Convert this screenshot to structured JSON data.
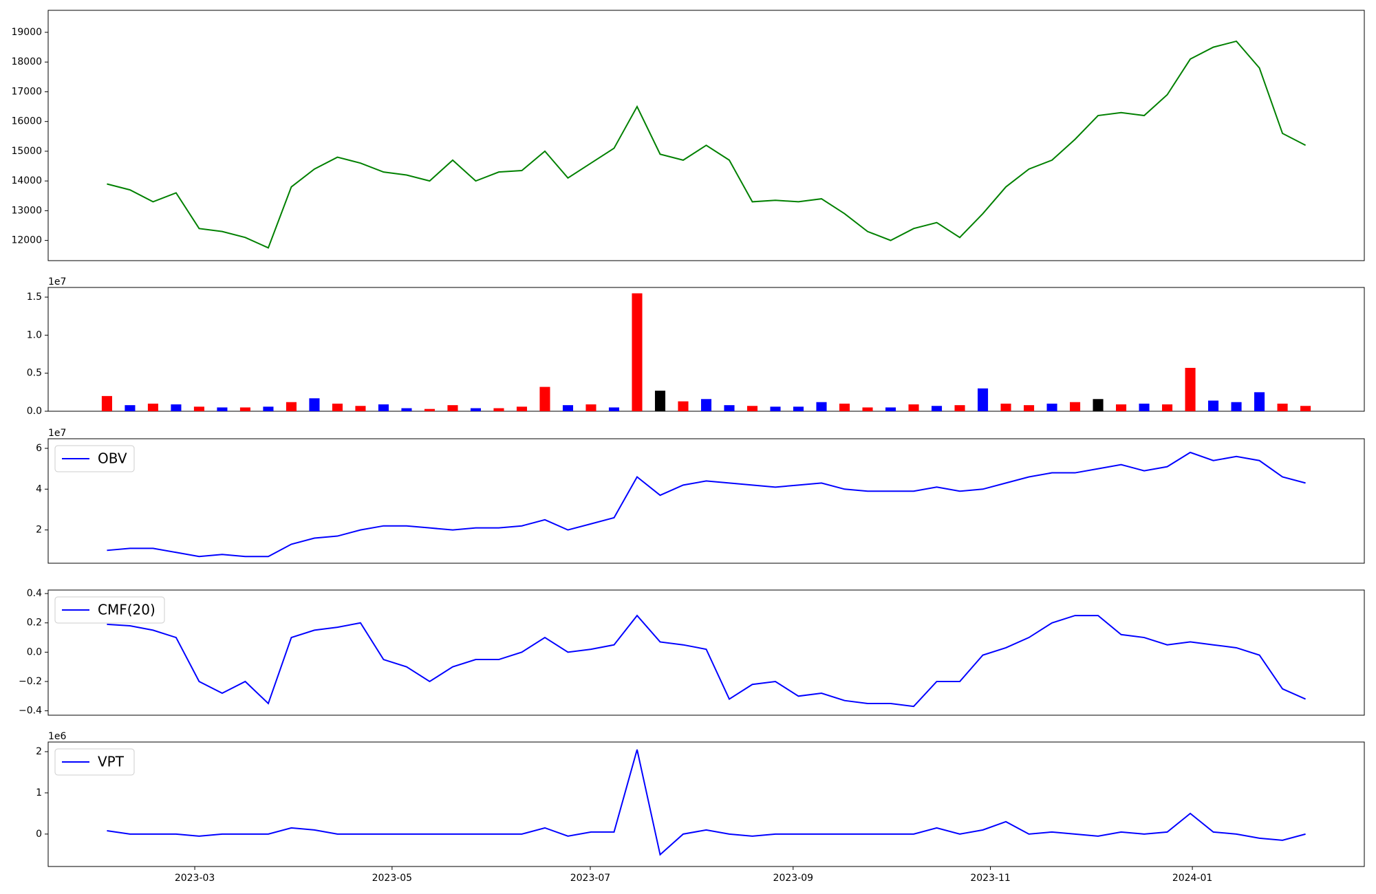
{
  "chart_data": [
    {
      "type": "line",
      "series": [
        {
          "color": "#008000",
          "values": [
            13900,
            13700,
            13300,
            13600,
            12400,
            12300,
            12100,
            11750,
            13800,
            14400,
            14800,
            14600,
            14300,
            14200,
            14000,
            14700,
            14000,
            14300,
            14350,
            15000,
            14100,
            14600,
            15100,
            16500,
            14900,
            14700,
            15200,
            14700,
            13300,
            13350,
            13300,
            13400,
            12900,
            12300,
            12000,
            12400,
            12600,
            12100,
            12900,
            13800,
            14400,
            14700,
            15400,
            16200,
            16300,
            16200,
            16900,
            18100,
            18500,
            18700,
            17800,
            15600,
            15200
          ]
        }
      ],
      "xlim": [
        -2.55,
        54.55
      ],
      "ylim": [
        11320,
        19740
      ],
      "yticks": [
        12000,
        13000,
        14000,
        15000,
        16000,
        17000,
        18000,
        19000
      ]
    },
    {
      "type": "bar",
      "values": [
        2000000,
        800000,
        1000000,
        900000,
        600000,
        500000,
        500000,
        600000,
        1200000,
        1700000,
        1000000,
        700000,
        900000,
        400000,
        300000,
        800000,
        400000,
        400000,
        600000,
        3200000,
        800000,
        900000,
        500000,
        15500000,
        2700000,
        1300000,
        1600000,
        800000,
        700000,
        600000,
        600000,
        1200000,
        1000000,
        500000,
        500000,
        900000,
        700000,
        800000,
        3000000,
        1000000,
        800000,
        1000000,
        1200000,
        1600000,
        900000,
        1000000,
        900000,
        5700000,
        1400000,
        1200000,
        2500000,
        1000000,
        700000
      ],
      "colors": [
        "#ff0000",
        "#0000ff",
        "#ff0000",
        "#0000ff",
        "#ff0000",
        "#0000ff",
        "#ff0000",
        "#0000ff",
        "#ff0000",
        "#0000ff",
        "#ff0000",
        "#ff0000",
        "#0000ff",
        "#0000ff",
        "#ff0000",
        "#ff0000",
        "#0000ff",
        "#ff0000",
        "#ff0000",
        "#ff0000",
        "#0000ff",
        "#ff0000",
        "#0000ff",
        "#ff0000",
        "#000000",
        "#ff0000",
        "#0000ff",
        "#0000ff",
        "#ff0000",
        "#0000ff",
        "#0000ff",
        "#0000ff",
        "#ff0000",
        "#ff0000",
        "#0000ff",
        "#ff0000",
        "#0000ff",
        "#ff0000",
        "#0000ff",
        "#ff0000",
        "#ff0000",
        "#0000ff",
        "#ff0000",
        "#000000",
        "#ff0000",
        "#0000ff",
        "#ff0000",
        "#ff0000",
        "#0000ff",
        "#0000ff",
        "#0000ff",
        "#ff0000",
        "#ff0000"
      ],
      "xlim": [
        -2.55,
        54.55
      ],
      "ylim": [
        0,
        16270000
      ],
      "offset_label": "1e7",
      "yticks": [
        {
          "value": 0,
          "label": "0.0"
        },
        {
          "value": 5000000,
          "label": "0.5"
        },
        {
          "value": 10000000,
          "label": "1.0"
        },
        {
          "value": 15000000,
          "label": "1.5"
        }
      ]
    },
    {
      "type": "line",
      "series": [
        {
          "name": "OBV",
          "color": "#0000ff",
          "values": [
            10000000,
            11000000,
            11000000,
            9000000,
            7000000,
            8000000,
            7000000,
            7000000,
            13000000,
            16000000,
            17000000,
            20000000,
            22000000,
            22000000,
            21000000,
            20000000,
            21000000,
            21000000,
            22000000,
            25000000,
            20000000,
            23000000,
            26000000,
            46000000,
            37000000,
            42000000,
            44000000,
            43000000,
            42000000,
            41000000,
            42000000,
            43000000,
            40000000,
            39000000,
            39000000,
            39000000,
            41000000,
            39000000,
            40000000,
            43000000,
            46000000,
            48000000,
            48000000,
            50000000,
            52000000,
            49000000,
            51000000,
            58000000,
            54000000,
            56000000,
            54000000,
            46000000,
            43000000
          ]
        }
      ],
      "legend": "upper left",
      "xlim": [
        -2.55,
        54.55
      ],
      "ylim": [
        3700000,
        64700000
      ],
      "offset_label": "1e7",
      "yticks": [
        {
          "value": 20000000,
          "label": "2"
        },
        {
          "value": 40000000,
          "label": "4"
        },
        {
          "value": 60000000,
          "label": "6"
        }
      ]
    },
    {
      "type": "line",
      "series": [
        {
          "name": "CMF(20)",
          "color": "#0000ff",
          "values": [
            0.19,
            0.18,
            0.15,
            0.1,
            -0.2,
            -0.28,
            -0.2,
            -0.35,
            0.1,
            0.15,
            0.17,
            0.2,
            -0.05,
            -0.1,
            -0.2,
            -0.1,
            -0.05,
            -0.05,
            0.0,
            0.1,
            0.0,
            0.02,
            0.05,
            0.25,
            0.07,
            0.05,
            0.02,
            -0.32,
            -0.22,
            -0.2,
            -0.3,
            -0.28,
            -0.33,
            -0.35,
            -0.35,
            -0.37,
            -0.2,
            -0.2,
            -0.02,
            0.03,
            0.1,
            0.2,
            0.25,
            0.25,
            0.12,
            0.1,
            0.05,
            0.07,
            0.05,
            0.03,
            -0.02,
            -0.25,
            -0.32
          ]
        }
      ],
      "legend": "upper left",
      "xlim": [
        -2.55,
        54.55
      ],
      "ylim": [
        -0.43,
        0.424
      ],
      "yticks": [
        {
          "value": -0.4,
          "label": "−0.4"
        },
        {
          "value": -0.2,
          "label": "−0.2"
        },
        {
          "value": 0,
          "label": "0.0"
        },
        0.2,
        0.4
      ]
    },
    {
      "type": "line",
      "series": [
        {
          "name": "VPT",
          "color": "#0000ff",
          "values": [
            80000,
            0,
            0,
            0,
            -50000,
            0,
            0,
            0,
            150000,
            100000,
            0,
            0,
            0,
            0,
            0,
            0,
            0,
            0,
            0,
            150000,
            -50000,
            50000,
            50000,
            2050000,
            -500000,
            0,
            100000,
            0,
            -50000,
            0,
            0,
            0,
            0,
            0,
            0,
            0,
            150000,
            0,
            100000,
            300000,
            0,
            50000,
            0,
            -50000,
            50000,
            0,
            50000,
            500000,
            50000,
            0,
            -100000,
            -150000,
            0
          ]
        }
      ],
      "legend": "upper left",
      "xlim": [
        -2.55,
        54.55
      ],
      "ylim": [
        -787000,
        2234000
      ],
      "offset_label": "1e6",
      "yticks": [
        0,
        {
          "value": 1000000,
          "label": "1"
        },
        {
          "value": 2000000,
          "label": "2"
        }
      ],
      "xticks": [
        {
          "value": 3.81,
          "label": "2023-03"
        },
        {
          "value": 12.37,
          "label": "2023-05"
        },
        {
          "value": 20.97,
          "label": "2023-07"
        },
        {
          "value": 29.77,
          "label": "2023-09"
        },
        {
          "value": 38.33,
          "label": "2023-11"
        },
        {
          "value": 47.09,
          "label": "2024-01"
        }
      ]
    }
  ]
}
